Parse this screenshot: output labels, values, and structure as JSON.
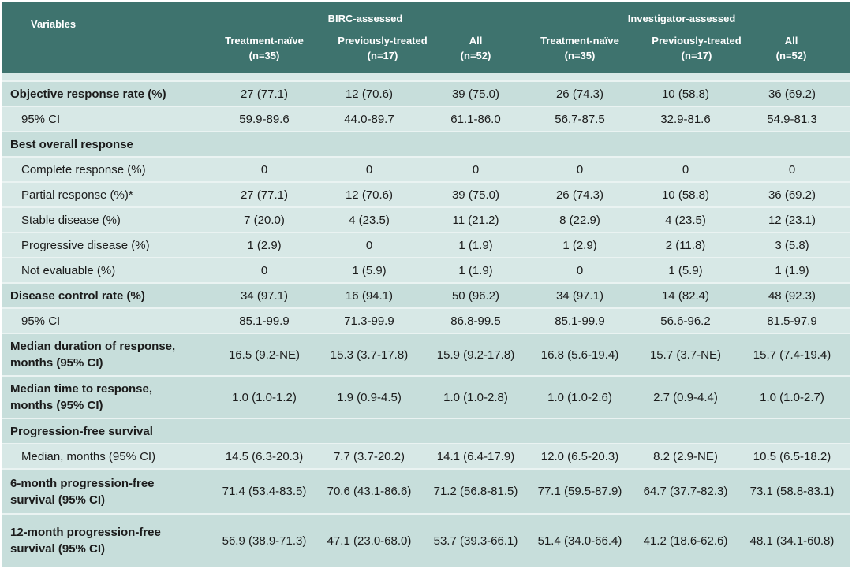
{
  "header": {
    "variables": "Variables",
    "groups": [
      "BIRC-assessed",
      "Investigator-assessed"
    ],
    "columns": [
      {
        "name": "Treatment-naïve",
        "n": "(n=35)"
      },
      {
        "name": "Previously-treated",
        "n": "(n=17)"
      },
      {
        "name": "All",
        "n": "(n=52)"
      },
      {
        "name": "Treatment-naïve",
        "n": "(n=35)"
      },
      {
        "name": "Previously-treated",
        "n": "(n=17)"
      },
      {
        "name": "All",
        "n": "(n=52)"
      }
    ]
  },
  "colors": {
    "header_bg": "#3e736e",
    "band_bg": "#c7dedb",
    "plain_bg": "#d7e8e6",
    "separator": "#eaf3f2"
  },
  "rows": [
    {
      "label": "Objective response rate (%)",
      "values": [
        "27 (77.1)",
        "12 (70.6)",
        "39 (75.0)",
        "26 (74.3)",
        "10 (58.8)",
        "36 (69.2)"
      ]
    },
    {
      "label": "95% CI",
      "values": [
        "59.9-89.6",
        "44.0-89.7",
        "61.1-86.0",
        "56.7-87.5",
        "32.9-81.6",
        "54.9-81.3"
      ]
    },
    {
      "label": "Best overall response",
      "values": [
        "",
        "",
        "",
        "",
        "",
        ""
      ]
    },
    {
      "label": "Complete response (%)",
      "values": [
        "0",
        "0",
        "0",
        "0",
        "0",
        "0"
      ]
    },
    {
      "label": "Partial response (%)*",
      "values": [
        "27 (77.1)",
        "12 (70.6)",
        "39 (75.0)",
        "26 (74.3)",
        "10 (58.8)",
        "36 (69.2)"
      ]
    },
    {
      "label": "Stable disease (%)",
      "values": [
        "7 (20.0)",
        "4 (23.5)",
        "11 (21.2)",
        "8 (22.9)",
        "4 (23.5)",
        "12 (23.1)"
      ]
    },
    {
      "label": "Progressive disease (%)",
      "values": [
        "1 (2.9)",
        "0",
        "1 (1.9)",
        "1 (2.9)",
        "2 (11.8)",
        "3 (5.8)"
      ]
    },
    {
      "label": "Not evaluable (%)",
      "values": [
        "0",
        "1 (5.9)",
        "1 (1.9)",
        "0",
        "1 (5.9)",
        "1 (1.9)"
      ]
    },
    {
      "label": "Disease control rate (%)",
      "values": [
        "34 (97.1)",
        "16 (94.1)",
        "50 (96.2)",
        "34 (97.1)",
        "14 (82.4)",
        "48 (92.3)"
      ]
    },
    {
      "label": "95% CI",
      "values": [
        "85.1-99.9",
        "71.3-99.9",
        "86.8-99.5",
        "85.1-99.9",
        "56.6-96.2",
        "81.5-97.9"
      ]
    },
    {
      "label_lines": [
        "Median duration of response,",
        "months (95% CI)"
      ],
      "values": [
        "16.5 (9.2-NE)",
        "15.3 (3.7-17.8)",
        "15.9 (9.2-17.8)",
        "16.8 (5.6-19.4)",
        "15.7 (3.7-NE)",
        "15.7 (7.4-19.4)"
      ]
    },
    {
      "label_lines": [
        "Median time to response,",
        "months (95% CI)"
      ],
      "values": [
        "1.0 (1.0-1.2)",
        "1.9 (0.9-4.5)",
        "1.0 (1.0-2.8)",
        "1.0 (1.0-2.6)",
        "2.7 (0.9-4.4)",
        "1.0 (1.0-2.7)"
      ]
    },
    {
      "label": "Progression-free survival",
      "values": [
        "",
        "",
        "",
        "",
        "",
        ""
      ]
    },
    {
      "label": "Median, months (95% CI)",
      "values": [
        "14.5 (6.3-20.3)",
        "7.7 (3.7-20.2)",
        "14.1 (6.4-17.9)",
        "12.0 (6.5-20.3)",
        "8.2 (2.9-NE)",
        "10.5 (6.5-18.2)"
      ]
    },
    {
      "label_lines": [
        "6-month progression-free",
        "survival (95% CI)"
      ],
      "values": [
        "71.4 (53.4-83.5)",
        "70.6 (43.1-86.6)",
        "71.2 (56.8-81.5)",
        "77.1 (59.5-87.9)",
        "64.7 (37.7-82.3)",
        "73.1 (58.8-83.1)"
      ]
    },
    {
      "label_lines": [
        "12-month progression-free",
        "survival (95% CI)"
      ],
      "values": [
        "56.9 (38.9-71.3)",
        "47.1 (23.0-68.0)",
        "53.7 (39.3-66.1)",
        "51.4 (34.0-66.4)",
        "41.2 (18.6-62.6)",
        "48.1 (34.1-60.8)"
      ]
    }
  ]
}
